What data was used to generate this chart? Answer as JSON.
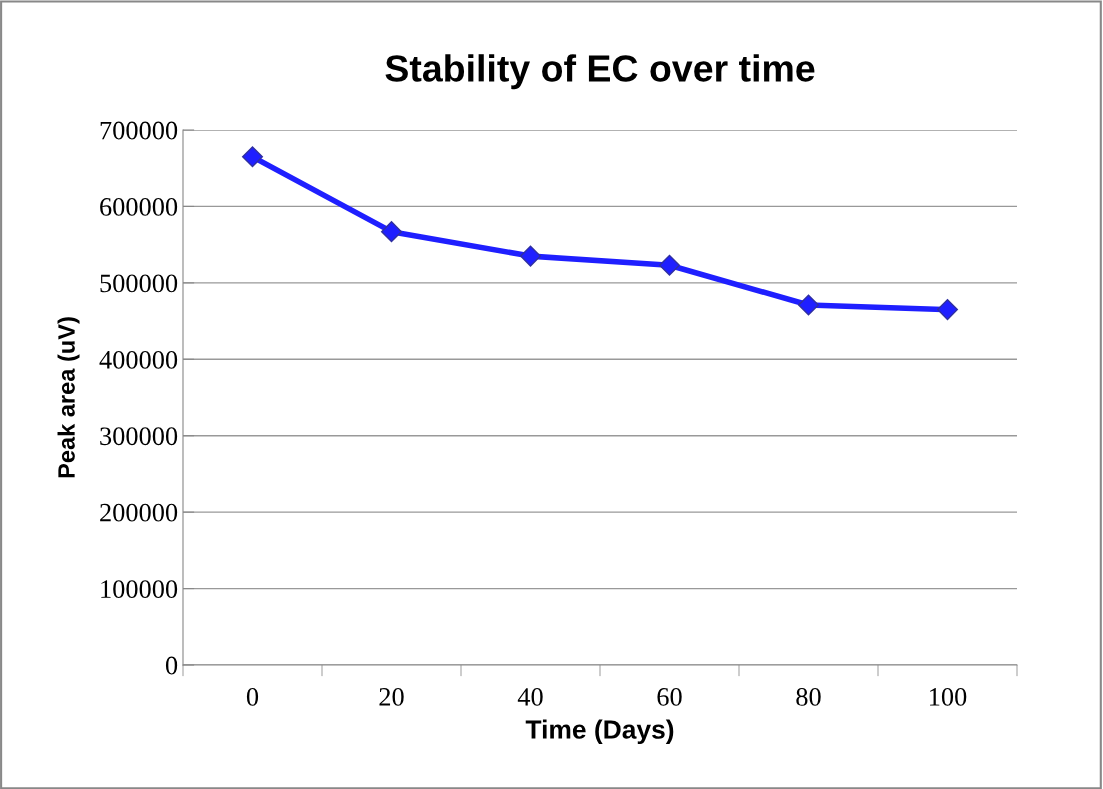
{
  "chart_data": {
    "type": "line",
    "title": "Stability of EC over time",
    "xlabel": "Time (Days)",
    "ylabel": "Peak area (uV)",
    "categories": [
      "0",
      "20",
      "40",
      "60",
      "80",
      "100"
    ],
    "series": [
      {
        "color": "#1f1fff",
        "values": [
          665000,
          567000,
          535000,
          523000,
          471000,
          465000
        ]
      }
    ],
    "ylim": [
      0,
      700000
    ],
    "yticks": [
      0,
      100000,
      200000,
      300000,
      400000,
      500000,
      600000,
      700000
    ],
    "grid": "y",
    "marker": "diamond",
    "line_style": "solid",
    "legend": false
  }
}
